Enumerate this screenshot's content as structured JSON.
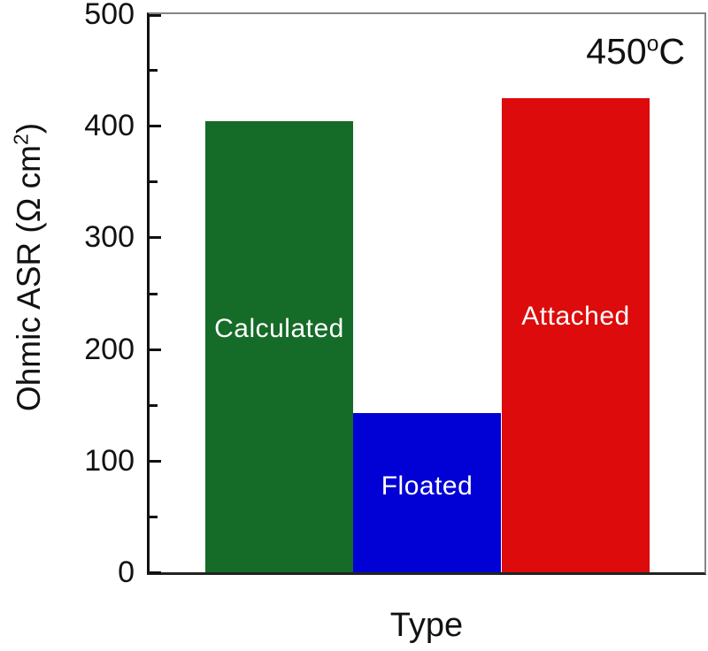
{
  "chart_data": {
    "type": "bar",
    "title": "",
    "categories": [
      "Calculated",
      "Floated",
      "Attached"
    ],
    "values": [
      404,
      143,
      425
    ],
    "bar_colors": [
      "#156b28",
      "#0101d5",
      "#dd0b0b"
    ],
    "bar_label_color": "#ffffff",
    "bar_labels_inside": true,
    "xlabel": "Type",
    "ylabel": "Ohmic ASR (Ω cm²)",
    "ylabel_parts": {
      "prefix": "Ohmic ASR (Ω cm",
      "sup": "2",
      "suffix": ")"
    },
    "ylim": [
      0,
      500
    ],
    "yticks": [
      0,
      100,
      200,
      300,
      400,
      500
    ],
    "ytick_step": 100,
    "minor_tick_step": 50,
    "annotation": {
      "value": "450",
      "sup": "o",
      "unit": "C",
      "full_text": "450°C"
    },
    "axis_color": "#111111",
    "frame_color": "#858585",
    "plot_background": "#ffffff",
    "grid": "off",
    "legend": "none"
  }
}
